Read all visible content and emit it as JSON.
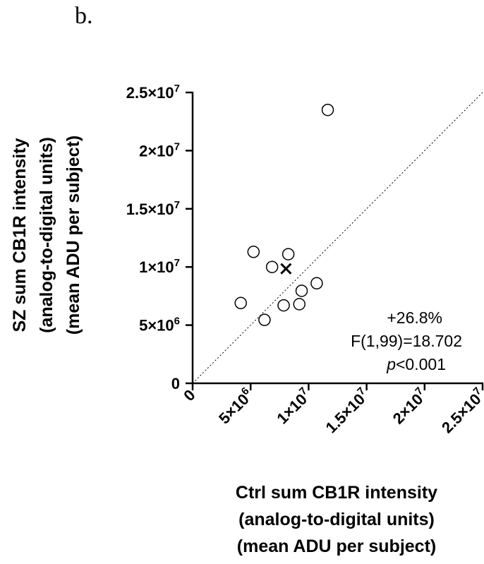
{
  "panel_label": "b.",
  "chart_data": {
    "type": "scatter",
    "title": "",
    "xlabel_lines": [
      "Ctrl sum CB1R intensity",
      "(analog-to-digital units)",
      "(mean ADU per subject)"
    ],
    "ylabel_lines": [
      "SZ sum CB1R intensity",
      "(analog-to-digital units)",
      "(mean ADU per subject)"
    ],
    "xlim": [
      0,
      25000000
    ],
    "ylim": [
      0,
      25000000
    ],
    "x_ticks": [
      {
        "value": 0,
        "mantissa": "0",
        "exponent": ""
      },
      {
        "value": 5000000,
        "mantissa": "5×10",
        "exponent": "6"
      },
      {
        "value": 10000000,
        "mantissa": "1×10",
        "exponent": "7"
      },
      {
        "value": 15000000,
        "mantissa": "1.5×10",
        "exponent": "7"
      },
      {
        "value": 20000000,
        "mantissa": "2×10",
        "exponent": "7"
      },
      {
        "value": 25000000,
        "mantissa": "2.5×10",
        "exponent": "7"
      }
    ],
    "y_ticks": [
      {
        "value": 0,
        "mantissa": "0",
        "exponent": ""
      },
      {
        "value": 5000000,
        "mantissa": "5×10",
        "exponent": "6"
      },
      {
        "value": 10000000,
        "mantissa": "1×10",
        "exponent": "7"
      },
      {
        "value": 15000000,
        "mantissa": "1.5×10",
        "exponent": "7"
      },
      {
        "value": 20000000,
        "mantissa": "2×10",
        "exponent": "7"
      },
      {
        "value": 25000000,
        "mantissa": "2.5×10",
        "exponent": "7"
      }
    ],
    "series": [
      {
        "name": "subject pairs",
        "marker": "open-circle",
        "points": [
          {
            "x": 11650000,
            "y": 23500000
          },
          {
            "x": 5250000,
            "y": 11300000
          },
          {
            "x": 8250000,
            "y": 11100000
          },
          {
            "x": 6850000,
            "y": 10000000
          },
          {
            "x": 10700000,
            "y": 8600000
          },
          {
            "x": 9400000,
            "y": 7950000
          },
          {
            "x": 4150000,
            "y": 6900000
          },
          {
            "x": 7850000,
            "y": 6700000
          },
          {
            "x": 9200000,
            "y": 6800000
          },
          {
            "x": 6200000,
            "y": 5450000
          }
        ]
      },
      {
        "name": "mean",
        "marker": "x",
        "points": [
          {
            "x": 8050000,
            "y": 9850000
          }
        ]
      }
    ],
    "reference_line": {
      "type": "identity",
      "style": "dotted"
    },
    "annotations": [
      "+26.8%",
      "F(1,99)=18.702"
    ],
    "p_value": {
      "symbol": "p",
      "rest": "<0.001"
    },
    "grid": false
  }
}
